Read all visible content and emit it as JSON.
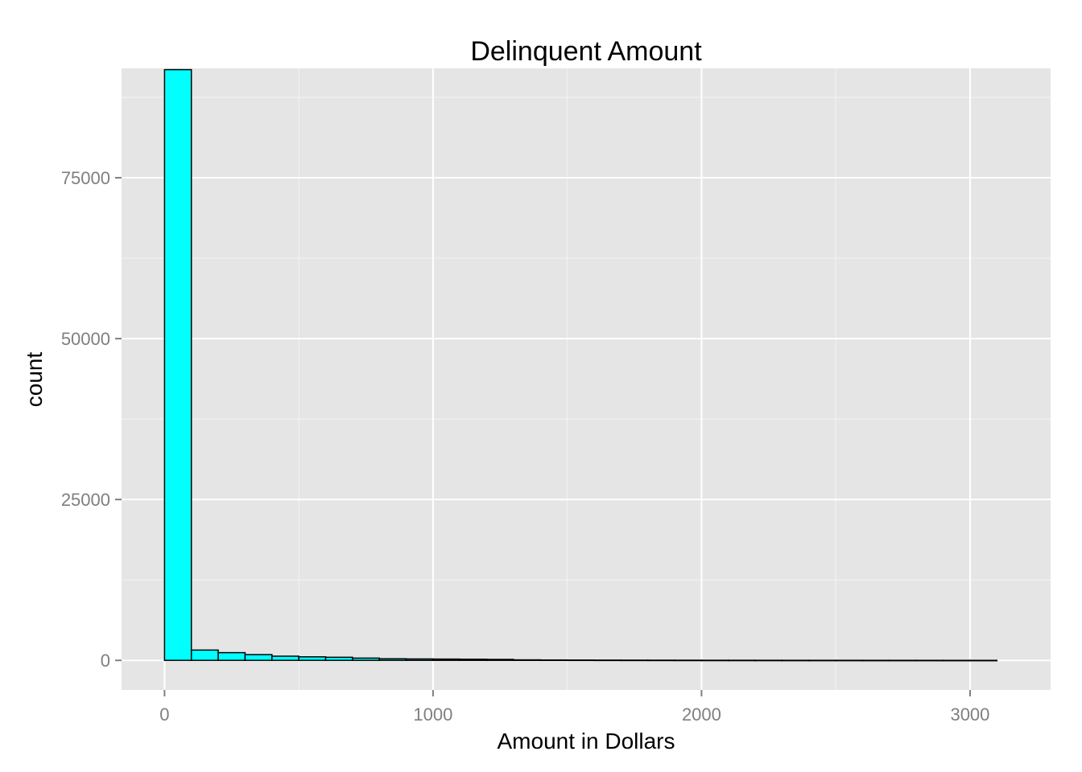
{
  "chart_data": {
    "type": "bar",
    "subtype": "histogram",
    "title": "Delinquent Amount",
    "xlabel": "Amount in Dollars",
    "ylabel": "count",
    "xlim": [
      -160,
      3300
    ],
    "ylim": [
      -4600,
      92000
    ],
    "x_ticks": [
      0,
      1000,
      2000,
      3000
    ],
    "x_tick_labels": [
      "0",
      "1000",
      "2000",
      "3000"
    ],
    "y_ticks": [
      0,
      25000,
      50000,
      75000
    ],
    "y_tick_labels": [
      "0",
      "25000",
      "50000",
      "75000"
    ],
    "grid": true,
    "bin_width": 100,
    "bin_starts": [
      0,
      100,
      200,
      300,
      400,
      500,
      600,
      700,
      800,
      900,
      1000,
      1100,
      1200,
      1300,
      1400,
      1500,
      1600,
      1700,
      1800,
      1900,
      2000,
      2100,
      2200,
      2300,
      2400,
      2500,
      2600,
      2700,
      2800,
      2900,
      3000
    ],
    "values": [
      91800,
      1600,
      1200,
      900,
      650,
      550,
      480,
      350,
      250,
      220,
      200,
      180,
      150,
      80,
      60,
      50,
      40,
      35,
      30,
      25,
      20,
      18,
      15,
      12,
      10,
      10,
      8,
      8,
      6,
      5,
      5
    ],
    "fill_color": "#00ffff",
    "outline_color": "#000000",
    "panel_color": "#e5e5e5",
    "gridline_color": "#ffffff"
  }
}
